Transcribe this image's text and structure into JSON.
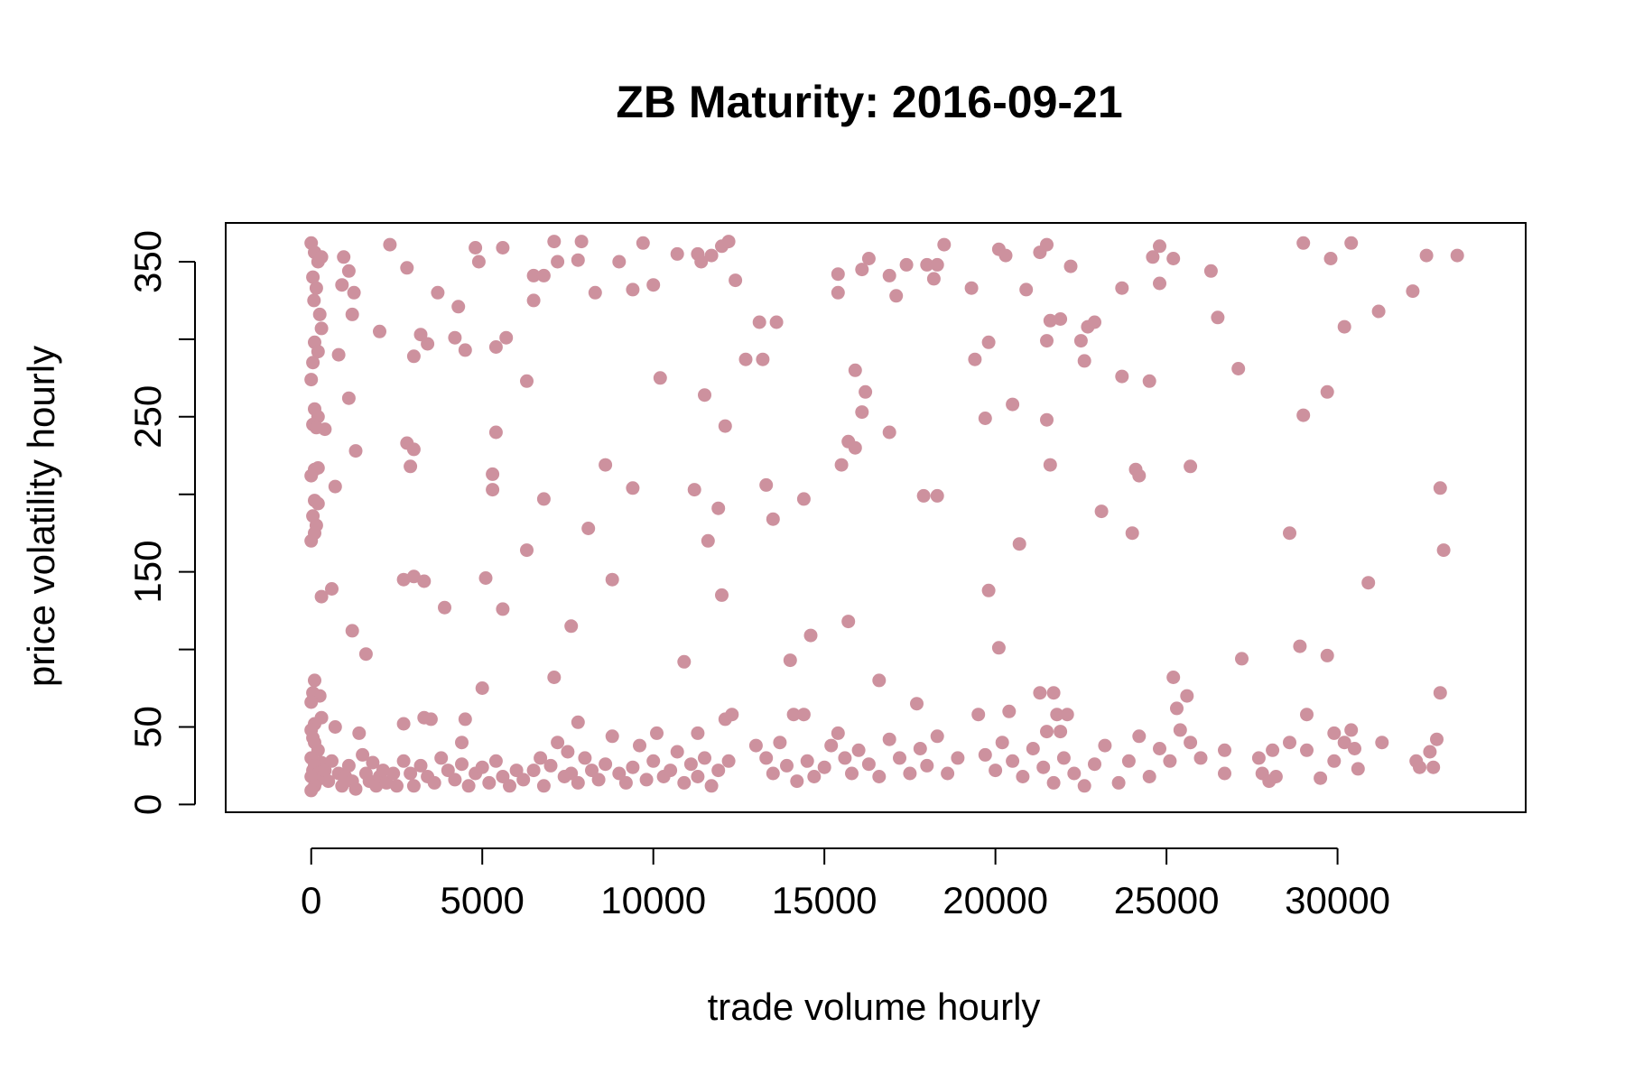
{
  "chart_data": {
    "type": "scatter",
    "title": "ZB Maturity: 2016-09-21",
    "xlabel": "trade volume hourly",
    "ylabel": "price volatility hourly",
    "xlim": [
      -2500,
      35500
    ],
    "ylim": [
      -5,
      375
    ],
    "xticks": [
      0,
      5000,
      10000,
      15000,
      20000,
      25000,
      30000
    ],
    "xtick_labels": [
      "0",
      "5000",
      "10000",
      "15000",
      "20000",
      "25000",
      "30000"
    ],
    "yticks": [
      0,
      50,
      100,
      150,
      200,
      250,
      300,
      350
    ],
    "ytick_labels": [
      "0",
      "50",
      "",
      "150",
      "",
      "250",
      "",
      "350"
    ],
    "point_color": "#cd919e",
    "grid": false,
    "points": [
      [
        0,
        362
      ],
      [
        100,
        356
      ],
      [
        200,
        350
      ],
      [
        50,
        340
      ],
      [
        300,
        353
      ],
      [
        150,
        333
      ],
      [
        80,
        325
      ],
      [
        250,
        316
      ],
      [
        300,
        307
      ],
      [
        100,
        298
      ],
      [
        200,
        292
      ],
      [
        50,
        285
      ],
      [
        0,
        274
      ],
      [
        100,
        255
      ],
      [
        200,
        250
      ],
      [
        50,
        245
      ],
      [
        150,
        243
      ],
      [
        400,
        242
      ],
      [
        100,
        216
      ],
      [
        200,
        217
      ],
      [
        0,
        212
      ],
      [
        100,
        196
      ],
      [
        200,
        194
      ],
      [
        50,
        186
      ],
      [
        150,
        180
      ],
      [
        100,
        175
      ],
      [
        0,
        170
      ],
      [
        300,
        134
      ],
      [
        600,
        139
      ],
      [
        700,
        205
      ],
      [
        800,
        290
      ],
      [
        900,
        335
      ],
      [
        950,
        353
      ],
      [
        1100,
        344
      ],
      [
        1250,
        330
      ],
      [
        1200,
        316
      ],
      [
        1100,
        262
      ],
      [
        1300,
        228
      ],
      [
        1200,
        112
      ],
      [
        1600,
        97
      ],
      [
        100,
        80
      ],
      [
        50,
        72
      ],
      [
        250,
        70
      ],
      [
        0,
        66
      ],
      [
        300,
        56
      ],
      [
        100,
        52
      ],
      [
        0,
        48
      ],
      [
        700,
        50
      ],
      [
        1400,
        46
      ],
      [
        50,
        43
      ],
      [
        100,
        40
      ],
      [
        200,
        35
      ],
      [
        0,
        30
      ],
      [
        300,
        27
      ],
      [
        100,
        25
      ],
      [
        50,
        22
      ],
      [
        200,
        20
      ],
      [
        0,
        18
      ],
      [
        150,
        15
      ],
      [
        100,
        12
      ],
      [
        0,
        9
      ],
      [
        400,
        22
      ],
      [
        500,
        15
      ],
      [
        600,
        28
      ],
      [
        800,
        20
      ],
      [
        900,
        12
      ],
      [
        1000,
        18
      ],
      [
        1100,
        25
      ],
      [
        1200,
        15
      ],
      [
        1300,
        10
      ],
      [
        1500,
        32
      ],
      [
        1600,
        20
      ],
      [
        1700,
        15
      ],
      [
        1800,
        27
      ],
      [
        1900,
        12
      ],
      [
        2000,
        18
      ],
      [
        2100,
        22
      ],
      [
        2200,
        14
      ],
      [
        2400,
        20
      ],
      [
        2500,
        12
      ],
      [
        2000,
        305
      ],
      [
        2300,
        361
      ],
      [
        2800,
        346
      ],
      [
        3200,
        303
      ],
      [
        3400,
        297
      ],
      [
        3000,
        289
      ],
      [
        3700,
        330
      ],
      [
        4200,
        301
      ],
      [
        4300,
        321
      ],
      [
        4500,
        293
      ],
      [
        4800,
        359
      ],
      [
        4900,
        350
      ],
      [
        5400,
        295
      ],
      [
        5600,
        359
      ],
      [
        5700,
        301
      ],
      [
        2800,
        233
      ],
      [
        3000,
        229
      ],
      [
        2900,
        218
      ],
      [
        5300,
        213
      ],
      [
        5300,
        203
      ],
      [
        5400,
        240
      ],
      [
        2700,
        145
      ],
      [
        3000,
        147
      ],
      [
        3300,
        144
      ],
      [
        3900,
        127
      ],
      [
        5100,
        146
      ],
      [
        5600,
        126
      ],
      [
        5000,
        75
      ],
      [
        2700,
        52
      ],
      [
        3300,
        56
      ],
      [
        3500,
        55
      ],
      [
        4500,
        55
      ],
      [
        4400,
        40
      ],
      [
        2700,
        28
      ],
      [
        2900,
        20
      ],
      [
        3000,
        12
      ],
      [
        3200,
        25
      ],
      [
        3400,
        18
      ],
      [
        3600,
        14
      ],
      [
        3800,
        30
      ],
      [
        4000,
        22
      ],
      [
        4200,
        16
      ],
      [
        4400,
        26
      ],
      [
        4600,
        12
      ],
      [
        4800,
        20
      ],
      [
        5000,
        24
      ],
      [
        5200,
        14
      ],
      [
        5400,
        28
      ],
      [
        5600,
        18
      ],
      [
        5800,
        12
      ],
      [
        6000,
        22
      ],
      [
        6200,
        16
      ],
      [
        6300,
        273
      ],
      [
        6500,
        325
      ],
      [
        6500,
        341
      ],
      [
        6800,
        341
      ],
      [
        7100,
        363
      ],
      [
        7200,
        350
      ],
      [
        7800,
        351
      ],
      [
        7900,
        363
      ],
      [
        8300,
        330
      ],
      [
        9000,
        350
      ],
      [
        9400,
        332
      ],
      [
        9700,
        362
      ],
      [
        10000,
        335
      ],
      [
        10700,
        355
      ],
      [
        11300,
        355
      ],
      [
        11400,
        350
      ],
      [
        11700,
        354
      ],
      [
        12000,
        360
      ],
      [
        12200,
        363
      ],
      [
        12400,
        338
      ],
      [
        6300,
        164
      ],
      [
        6800,
        197
      ],
      [
        8100,
        178
      ],
      [
        8600,
        219
      ],
      [
        8800,
        145
      ],
      [
        9400,
        204
      ],
      [
        10200,
        275
      ],
      [
        11200,
        203
      ],
      [
        11500,
        264
      ],
      [
        11600,
        170
      ],
      [
        11900,
        191
      ],
      [
        12100,
        244
      ],
      [
        12000,
        135
      ],
      [
        7600,
        115
      ],
      [
        7100,
        82
      ],
      [
        7800,
        53
      ],
      [
        10900,
        92
      ],
      [
        11300,
        46
      ],
      [
        12100,
        55
      ],
      [
        12300,
        58
      ],
      [
        6500,
        22
      ],
      [
        6700,
        30
      ],
      [
        6800,
        12
      ],
      [
        7000,
        25
      ],
      [
        7200,
        40
      ],
      [
        7400,
        18
      ],
      [
        7500,
        34
      ],
      [
        7600,
        20
      ],
      [
        7800,
        14
      ],
      [
        8000,
        30
      ],
      [
        8200,
        22
      ],
      [
        8400,
        16
      ],
      [
        8600,
        26
      ],
      [
        8800,
        44
      ],
      [
        9000,
        20
      ],
      [
        9200,
        14
      ],
      [
        9400,
        24
      ],
      [
        9600,
        38
      ],
      [
        9800,
        16
      ],
      [
        10000,
        28
      ],
      [
        10100,
        46
      ],
      [
        10300,
        18
      ],
      [
        10500,
        22
      ],
      [
        10700,
        34
      ],
      [
        10900,
        14
      ],
      [
        11100,
        26
      ],
      [
        11300,
        18
      ],
      [
        11500,
        30
      ],
      [
        11700,
        12
      ],
      [
        11900,
        22
      ],
      [
        12200,
        28
      ],
      [
        12700,
        287
      ],
      [
        13100,
        311
      ],
      [
        13200,
        287
      ],
      [
        13600,
        311
      ],
      [
        13300,
        206
      ],
      [
        13500,
        184
      ],
      [
        14400,
        197
      ],
      [
        14000,
        93
      ],
      [
        14600,
        109
      ],
      [
        14100,
        58
      ],
      [
        14400,
        58
      ],
      [
        13000,
        38
      ],
      [
        13300,
        30
      ],
      [
        13500,
        20
      ],
      [
        13700,
        40
      ],
      [
        13900,
        25
      ],
      [
        14200,
        15
      ],
      [
        14500,
        28
      ],
      [
        14700,
        18
      ],
      [
        15000,
        24
      ],
      [
        15200,
        38
      ],
      [
        15400,
        46
      ],
      [
        15600,
        30
      ],
      [
        15800,
        20
      ],
      [
        16000,
        35
      ],
      [
        16300,
        26
      ],
      [
        16600,
        18
      ],
      [
        16900,
        42
      ],
      [
        17200,
        30
      ],
      [
        17500,
        20
      ],
      [
        17800,
        36
      ],
      [
        18000,
        25
      ],
      [
        18300,
        44
      ],
      [
        18600,
        20
      ],
      [
        18900,
        30
      ],
      [
        15400,
        342
      ],
      [
        15400,
        330
      ],
      [
        16100,
        345
      ],
      [
        16300,
        352
      ],
      [
        16900,
        341
      ],
      [
        17400,
        348
      ],
      [
        17100,
        328
      ],
      [
        18000,
        348
      ],
      [
        18200,
        339
      ],
      [
        18300,
        348
      ],
      [
        18500,
        361
      ],
      [
        19300,
        333
      ],
      [
        19800,
        298
      ],
      [
        19400,
        287
      ],
      [
        15900,
        280
      ],
      [
        16200,
        266
      ],
      [
        16100,
        253
      ],
      [
        15700,
        234
      ],
      [
        15900,
        230
      ],
      [
        16900,
        240
      ],
      [
        15500,
        219
      ],
      [
        17900,
        199
      ],
      [
        18300,
        199
      ],
      [
        19700,
        249
      ],
      [
        15700,
        118
      ],
      [
        16600,
        80
      ],
      [
        17700,
        65
      ],
      [
        19800,
        138
      ],
      [
        19500,
        58
      ],
      [
        20100,
        101
      ],
      [
        20400,
        60
      ],
      [
        20700,
        168
      ],
      [
        20900,
        332
      ],
      [
        20100,
        358
      ],
      [
        20300,
        354
      ],
      [
        20500,
        258
      ],
      [
        21300,
        356
      ],
      [
        21500,
        361
      ],
      [
        21600,
        312
      ],
      [
        21500,
        299
      ],
      [
        21600,
        219
      ],
      [
        21500,
        248
      ],
      [
        21900,
        313
      ],
      [
        22200,
        347
      ],
      [
        22500,
        299
      ],
      [
        22600,
        286
      ],
      [
        22700,
        308
      ],
      [
        22900,
        311
      ],
      [
        23100,
        189
      ],
      [
        21300,
        72
      ],
      [
        21700,
        72
      ],
      [
        21800,
        58
      ],
      [
        22100,
        58
      ],
      [
        21500,
        47
      ],
      [
        21900,
        47
      ],
      [
        19700,
        32
      ],
      [
        20000,
        22
      ],
      [
        20200,
        40
      ],
      [
        20500,
        28
      ],
      [
        20800,
        18
      ],
      [
        21100,
        36
      ],
      [
        21400,
        24
      ],
      [
        21700,
        14
      ],
      [
        22000,
        30
      ],
      [
        22300,
        20
      ],
      [
        22600,
        12
      ],
      [
        22900,
        26
      ],
      [
        23200,
        38
      ],
      [
        23600,
        14
      ],
      [
        23900,
        28
      ],
      [
        24200,
        44
      ],
      [
        24500,
        18
      ],
      [
        24800,
        36
      ],
      [
        25100,
        28
      ],
      [
        25400,
        48
      ],
      [
        25700,
        40
      ],
      [
        26000,
        30
      ],
      [
        23700,
        333
      ],
      [
        23700,
        276
      ],
      [
        24000,
        175
      ],
      [
        24100,
        216
      ],
      [
        24200,
        212
      ],
      [
        24500,
        273
      ],
      [
        24600,
        353
      ],
      [
        24800,
        360
      ],
      [
        24800,
        336
      ],
      [
        25200,
        352
      ],
      [
        25700,
        218
      ],
      [
        26300,
        344
      ],
      [
        26500,
        314
      ],
      [
        27100,
        281
      ],
      [
        25200,
        82
      ],
      [
        25300,
        62
      ],
      [
        25600,
        70
      ],
      [
        27200,
        94
      ],
      [
        26700,
        35
      ],
      [
        26700,
        20
      ],
      [
        27700,
        30
      ],
      [
        27800,
        20
      ],
      [
        28000,
        15
      ],
      [
        28100,
        35
      ],
      [
        28200,
        18
      ],
      [
        28600,
        40
      ],
      [
        28600,
        175
      ],
      [
        28900,
        102
      ],
      [
        29000,
        362
      ],
      [
        29000,
        251
      ],
      [
        29100,
        58
      ],
      [
        29100,
        35
      ],
      [
        29500,
        17
      ],
      [
        29700,
        266
      ],
      [
        29800,
        352
      ],
      [
        29700,
        96
      ],
      [
        29900,
        46
      ],
      [
        29900,
        28
      ],
      [
        30200,
        308
      ],
      [
        30200,
        40
      ],
      [
        30400,
        362
      ],
      [
        30400,
        48
      ],
      [
        30500,
        36
      ],
      [
        30600,
        23
      ],
      [
        30900,
        143
      ],
      [
        31200,
        318
      ],
      [
        31300,
        40
      ],
      [
        32200,
        331
      ],
      [
        32300,
        28
      ],
      [
        32400,
        24
      ],
      [
        32600,
        354
      ],
      [
        32700,
        34
      ],
      [
        32800,
        24
      ],
      [
        32900,
        42
      ],
      [
        33000,
        72
      ],
      [
        33000,
        204
      ],
      [
        33100,
        164
      ],
      [
        33500,
        354
      ]
    ]
  }
}
